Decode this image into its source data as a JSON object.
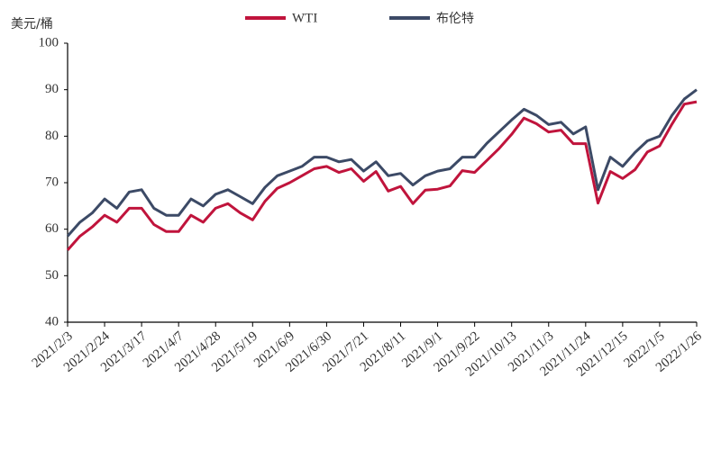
{
  "chart_data": {
    "type": "line",
    "y_label": "美元/桶",
    "categories": [
      "2021/2/3",
      null,
      null,
      "2021/2/24",
      null,
      null,
      "2021/3/17",
      null,
      null,
      "2021/4/7",
      null,
      null,
      "2021/4/28",
      null,
      null,
      "2021/5/19",
      null,
      null,
      "2021/6/9",
      null,
      null,
      "2021/6/30",
      null,
      null,
      "2021/7/21",
      null,
      null,
      "2021/8/11",
      null,
      null,
      "2021/9/1",
      null,
      null,
      "2021/9/22",
      null,
      null,
      "2021/10/13",
      null,
      null,
      "2021/11/3",
      null,
      null,
      "2021/11/24",
      null,
      null,
      "2021/12/15",
      null,
      null,
      "2022/1/5",
      null,
      null,
      "2022/1/26"
    ],
    "series": [
      {
        "name": "WTI",
        "color": "#c0143c",
        "values": [
          55.5,
          58.5,
          60.5,
          63,
          61.5,
          64.5,
          64.5,
          61,
          59.5,
          59.5,
          63,
          61.5,
          64.5,
          65.5,
          63.5,
          62,
          66,
          68.8,
          70,
          71.5,
          73,
          73.5,
          72.2,
          73,
          70.3,
          72.4,
          68.2,
          69.2,
          65.5,
          68.4,
          68.6,
          69.3,
          72.6,
          72.2,
          74.8,
          77.4,
          80.4,
          83.9,
          82.7,
          80.9,
          81.3,
          78.4,
          78.4,
          65.6,
          72.4,
          70.9,
          72.8,
          76.6,
          77.9,
          82.6,
          86.9,
          87.4
        ]
      },
      {
        "name": "布伦特",
        "color": "#3c4a66",
        "values": [
          58.5,
          61.5,
          63.5,
          66.5,
          64.5,
          68,
          68.5,
          64.5,
          63,
          63,
          66.5,
          65,
          67.5,
          68.5,
          67,
          65.5,
          69,
          71.5,
          72.5,
          73.5,
          75.5,
          75.5,
          74.5,
          75,
          72.5,
          74.5,
          71.5,
          72,
          69.5,
          71.5,
          72.5,
          73,
          75.5,
          75.5,
          78.5,
          81,
          83.5,
          85.8,
          84.5,
          82.5,
          83,
          80.5,
          82,
          68.5,
          75.5,
          73.5,
          76.5,
          79,
          80,
          84.5,
          88,
          90
        ]
      }
    ],
    "ylim": [
      40,
      100
    ],
    "yticks": [
      40,
      50,
      60,
      70,
      80,
      90,
      100
    ]
  }
}
